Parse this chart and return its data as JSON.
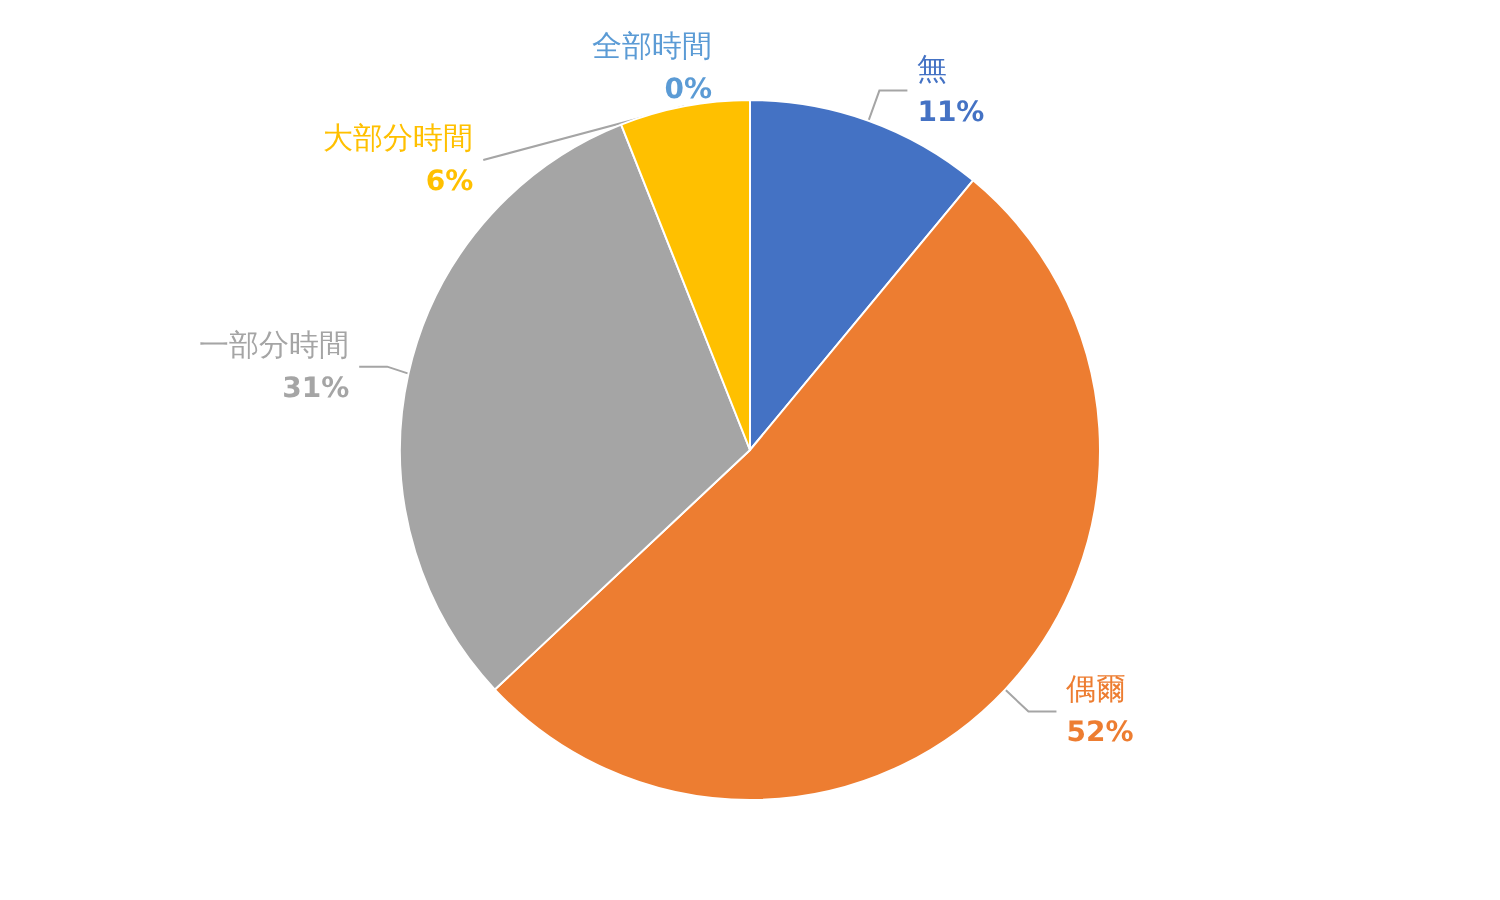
{
  "chart_data": {
    "type": "pie",
    "categories": [
      "無",
      "偶爾",
      "一部分時間",
      "大部分時間",
      "全部時間"
    ],
    "values": [
      11,
      52,
      31,
      6,
      0
    ],
    "value_labels": [
      "11%",
      "52%",
      "31%",
      "6%",
      "0%"
    ],
    "colors": [
      "#4472c4",
      "#ed7d31",
      "#a5a5a5",
      "#ffc000",
      "#5b9bd5"
    ]
  }
}
